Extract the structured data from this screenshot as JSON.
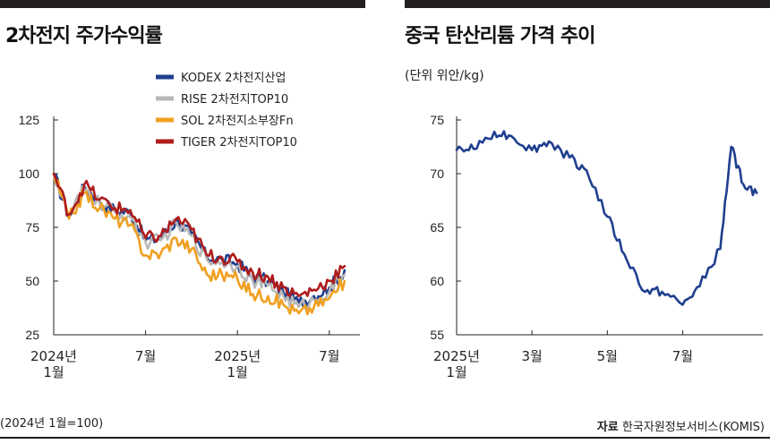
{
  "left_panel": {
    "title": "2차전지 주가수익률",
    "footnote": "(2024년 1월=100)"
  },
  "right_panel": {
    "title": "중국 탄산리튬 가격 추이",
    "unit": "(단위 위안/kg)",
    "source_label": "자료",
    "source_text": "한국자원정보서비스(KOMIS)"
  },
  "chart_data": [
    {
      "type": "line",
      "title": "2차전지 주가수익률",
      "ylim": [
        25,
        125
      ],
      "yticks": [
        "125",
        "100",
        "75",
        "50",
        "25"
      ],
      "xticks": [
        {
          "label": [
            "2024년",
            "1월"
          ],
          "x": "2024-01"
        },
        {
          "label": [
            "7월"
          ],
          "x": "2024-07"
        },
        {
          "label": [
            "2025년",
            "1월"
          ],
          "x": "2025-01"
        },
        {
          "label": [
            "7월"
          ],
          "x": "2025-07"
        }
      ],
      "legend_position": "top-right",
      "x": [
        "2024-01",
        "2024-02",
        "2024-03",
        "2024-04",
        "2024-05",
        "2024-06",
        "2024-07",
        "2024-08",
        "2024-09",
        "2024-10",
        "2024-11",
        "2024-12",
        "2025-01",
        "2025-02",
        "2025-03",
        "2025-04",
        "2025-05",
        "2025-06",
        "2025-07",
        "2025-08"
      ],
      "series": [
        {
          "name": "KODEX 2차전지산업",
          "color": "#1f3f8f",
          "values": [
            100,
            80,
            94,
            87,
            83,
            82,
            69,
            70,
            78,
            72,
            61,
            60,
            58,
            52,
            50,
            45,
            40,
            43,
            47,
            55
          ]
        },
        {
          "name": "RISE 2차전지TOP10",
          "color": "#b8b8b8",
          "values": [
            100,
            80,
            93,
            86,
            82,
            80,
            68,
            69,
            77,
            71,
            60,
            59,
            57,
            50,
            48,
            43,
            38,
            41,
            45,
            53
          ]
        },
        {
          "name": "SOL 2차전지소부장Fn",
          "color": "#f0a020",
          "values": [
            100,
            79,
            91,
            84,
            79,
            76,
            62,
            63,
            70,
            65,
            53,
            53,
            51,
            44,
            43,
            39,
            35,
            38,
            42,
            50
          ]
        },
        {
          "name": "TIGER 2차전지TOP10",
          "color": "#b01c1c",
          "values": [
            100,
            81,
            95,
            88,
            84,
            83,
            70,
            71,
            79,
            74,
            62,
            61,
            59,
            54,
            52,
            47,
            43,
            46,
            50,
            57
          ]
        }
      ]
    },
    {
      "type": "line",
      "title": "중국 탄산리튬 가격 추이",
      "ylabel": "위안/kg",
      "ylim": [
        55,
        75
      ],
      "yticks": [
        "75",
        "70",
        "65",
        "60",
        "55"
      ],
      "xticks": [
        {
          "label": [
            "2025년",
            "1월"
          ],
          "x": "2025-01"
        },
        {
          "label": [
            "3월"
          ],
          "x": "2025-03"
        },
        {
          "label": [
            "5월"
          ],
          "x": "2025-05"
        },
        {
          "label": [
            "7월"
          ],
          "x": "2025-07"
        }
      ],
      "x": [
        "2025-01-01",
        "2025-01-15",
        "2025-02-01",
        "2025-02-15",
        "2025-03-01",
        "2025-03-15",
        "2025-04-01",
        "2025-04-15",
        "2025-05-01",
        "2025-05-15",
        "2025-06-01",
        "2025-06-15",
        "2025-07-01",
        "2025-07-15",
        "2025-08-01",
        "2025-08-10",
        "2025-08-20",
        "2025-08-31"
      ],
      "series": [
        {
          "name": "",
          "color": "#1f3f8f",
          "values": [
            72.2,
            72.3,
            73.9,
            73.5,
            72.2,
            73.0,
            71.5,
            70.3,
            66.0,
            62.5,
            59.0,
            59.0,
            57.8,
            59.5,
            63.0,
            72.5,
            69.0,
            68.2
          ]
        }
      ]
    }
  ]
}
